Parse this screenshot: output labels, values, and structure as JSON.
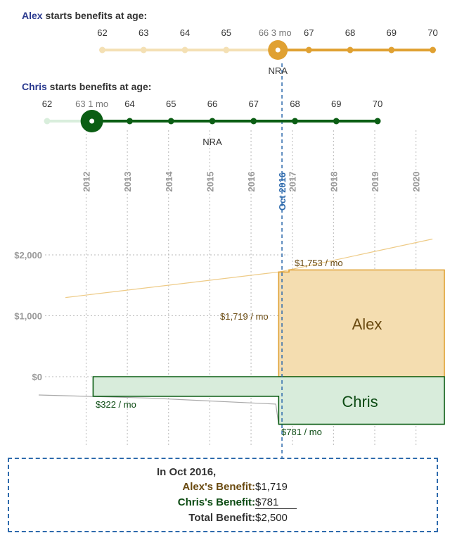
{
  "colors": {
    "alex_dark": "#e0a132",
    "alex_light": "#f4e0b4",
    "alex_fill": "#f4ddb0",
    "alex_text": "#6a4a10",
    "chris_dark": "#0b5e14",
    "chris_light": "#d9eedc",
    "chris_fill": "#d8ecdb",
    "chris_text": "#0b4a12",
    "person_name": "#2b3a8f",
    "cursor": "#2f6bad",
    "grid": "#b8b8b8",
    "axis_text": "#9a9a9a"
  },
  "alex_slider": {
    "name": "Alex",
    "label_suffix": " starts benefits at age:",
    "ticks": [
      "62",
      "63",
      "64",
      "65",
      "66 3 mo",
      "67",
      "68",
      "69",
      "70"
    ],
    "tick_ages": [
      62,
      63,
      64,
      65,
      66.25,
      67,
      68,
      69,
      70
    ],
    "selected_age": 66.25,
    "nra_label": "NRA",
    "nra_age": 66.25
  },
  "chris_slider": {
    "name": "Chris",
    "label_suffix": " starts benefits at age:",
    "ticks": [
      "62",
      "63 1 mo",
      "64",
      "65",
      "66",
      "67",
      "68",
      "69",
      "70"
    ],
    "tick_ages": [
      62,
      63.083,
      64,
      65,
      66,
      67,
      68,
      69,
      70
    ],
    "selected_age": 63.083,
    "nra_label": "NRA",
    "nra_age": 66
  },
  "cursor_label": "Oct 2016",
  "chart_data": {
    "type": "area",
    "x_tick_labels": [
      "2012",
      "2013",
      "2014",
      "2015",
      "2016",
      "2017",
      "2018",
      "2019",
      "2020"
    ],
    "x_range": [
      2011,
      2021
    ],
    "y_tick_labels": [
      "$2,000",
      "$1,000",
      "$0"
    ],
    "y_ticks": [
      2000,
      1000,
      0
    ],
    "grid": true,
    "cursor_year": 2016.75,
    "series": [
      {
        "name": "Alex",
        "start_year": 2016.67,
        "monthly_benefit": 1719,
        "benefit_after_step": 1753,
        "step_year": 2016.92,
        "labels": [
          "$1,719 / mo",
          "$1,753 / mo"
        ],
        "hypothetical_line": [
          [
            2011.5,
            1300
          ],
          [
            2016.67,
            1719
          ],
          [
            2016.92,
            1753
          ],
          [
            2020.4,
            2260
          ]
        ]
      },
      {
        "name": "Chris",
        "start_year": 2012.17,
        "monthly_benefit": 322,
        "benefit_after_step": 781,
        "step_year": 2016.67,
        "labels": [
          "$322 / mo",
          "$781 / mo"
        ],
        "hypothetical_line": [
          [
            2010.85,
            -300
          ],
          [
            2013.5,
            -350
          ],
          [
            2016.6,
            -450
          ],
          [
            2016.67,
            -781
          ],
          [
            2019.05,
            -781
          ]
        ]
      }
    ]
  },
  "summary": {
    "heading": "In Oct 2016,",
    "rows": [
      {
        "label": "Alex's Benefit",
        "value": "$1,719"
      },
      {
        "label": "Chris's Benefit",
        "value": "$781"
      },
      {
        "label": "Total Benefit",
        "value": "$2,500"
      }
    ]
  }
}
